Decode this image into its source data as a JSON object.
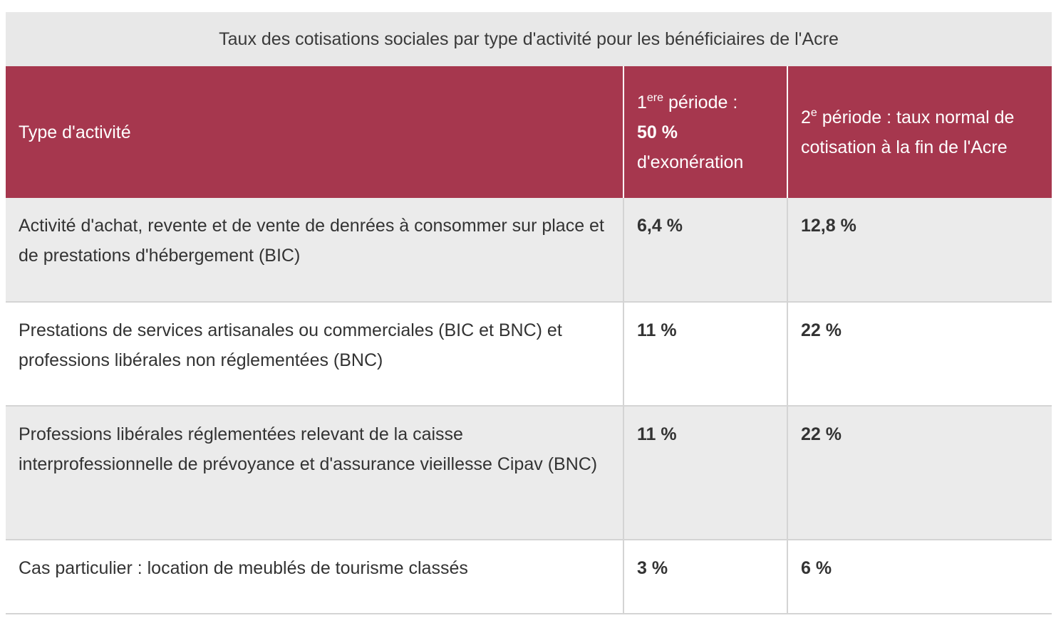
{
  "table": {
    "caption": "Taux des cotisations sociales par type d'activité pour les bénéficiaires de l'Acre",
    "header": [
      {
        "text": "Type d'activité"
      },
      {
        "number": "1",
        "sup": "ere",
        "text": "période :",
        "rate": "50 %",
        "rest": "d'exonération"
      },
      {
        "number": "2",
        "sup": "e",
        "text": "période : taux normal de cotisation à la fin de l'Acre"
      }
    ],
    "rows": [
      [
        "Activité d'achat, revente et de vente de denrées à consommer sur place et de prestations d'hébergement (BIC)",
        "6,4 %",
        "12,8 %"
      ],
      [
        "Prestations de services artisanales ou commerciales (BIC et BNC) et professions libérales non réglementées (BNC)",
        "11 %",
        "22 %"
      ],
      [
        "Professions libérales réglementées relevant de la caisse interprofessionnelle de prévoyance et d'assurance vieillesse Cipav (BNC)",
        "11 %",
        "22 %"
      ],
      [
        "Cas particulier : location de meublés de tourisme classés",
        "3 %",
        "6 %"
      ]
    ]
  }
}
